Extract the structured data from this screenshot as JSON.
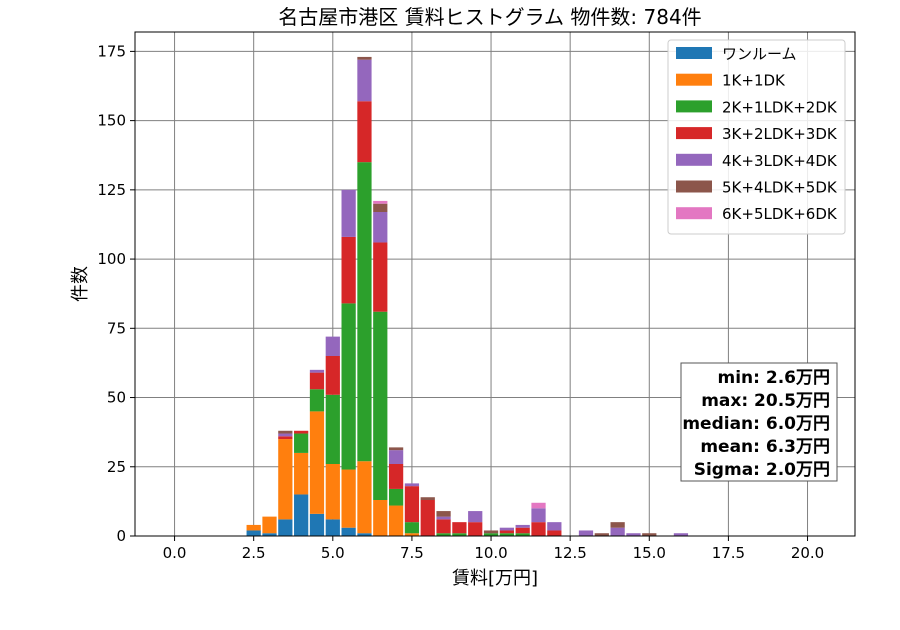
{
  "chart_data": {
    "type": "bar",
    "stacked": true,
    "title": "名古屋市港区 賃料ヒストグラム 物件数: 784件",
    "xlabel": "賃料[万円]",
    "ylabel": "件数",
    "xlim": [
      -1.25,
      21.5
    ],
    "ylim": [
      0,
      182
    ],
    "xticks": [
      "0.0",
      "2.5",
      "5.0",
      "7.5",
      "10.0",
      "12.5",
      "15.0",
      "17.5",
      "20.0"
    ],
    "yticks": [
      "0",
      "25",
      "50",
      "75",
      "100",
      "125",
      "150",
      "175"
    ],
    "grid": true,
    "legend_position": "top-right",
    "bin_width": 0.5,
    "x": [
      2.5,
      3.0,
      3.5,
      4.0,
      4.5,
      5.0,
      5.5,
      6.0,
      6.5,
      7.0,
      7.5,
      8.0,
      8.5,
      9.0,
      9.5,
      10.0,
      10.5,
      11.0,
      11.5,
      12.0,
      12.5,
      13.0,
      13.5,
      14.0,
      14.5,
      15.0,
      15.5,
      16.0
    ],
    "series": [
      {
        "name": "ワンルーム",
        "color": "#1f77b4",
        "values": [
          2,
          1,
          6,
          15,
          8,
          6,
          3,
          1,
          0,
          0,
          0,
          0,
          0,
          0,
          0,
          0,
          0,
          0,
          0,
          0,
          0,
          0,
          0,
          0,
          0,
          0,
          0,
          0
        ]
      },
      {
        "name": "1K+1DK",
        "color": "#ff7f0e",
        "values": [
          2,
          6,
          29,
          15,
          37,
          20,
          21,
          26,
          13,
          11,
          1,
          0,
          0,
          0,
          0,
          0,
          0,
          0,
          0,
          0,
          0,
          0,
          0,
          0,
          0,
          0,
          0,
          0
        ]
      },
      {
        "name": "2K+1LDK+2DK",
        "color": "#2ca02c",
        "values": [
          0,
          0,
          0,
          7,
          8,
          25,
          60,
          108,
          68,
          6,
          4,
          0,
          1,
          1,
          0,
          1,
          1,
          1,
          0,
          0,
          0,
          0,
          0,
          0,
          0,
          0,
          0,
          0
        ]
      },
      {
        "name": "3K+2LDK+3DK",
        "color": "#d62728",
        "values": [
          0,
          0,
          1,
          1,
          6,
          14,
          24,
          22,
          25,
          9,
          13,
          13,
          5,
          4,
          5,
          0,
          1,
          2,
          5,
          2,
          0,
          0,
          0,
          0,
          0,
          0,
          0,
          0
        ]
      },
      {
        "name": "4K+3LDK+4DK",
        "color": "#9467bd",
        "values": [
          0,
          0,
          1,
          0,
          1,
          7,
          17,
          15,
          11,
          5,
          1,
          0,
          1,
          0,
          4,
          0,
          1,
          1,
          5,
          3,
          0,
          2,
          0,
          3,
          1,
          0,
          0,
          1
        ]
      },
      {
        "name": "5K+4LDK+5DK",
        "color": "#8c564b",
        "values": [
          0,
          0,
          1,
          0,
          0,
          0,
          0,
          1,
          3,
          1,
          0,
          1,
          2,
          0,
          0,
          1,
          0,
          0,
          0,
          0,
          0,
          0,
          1,
          2,
          0,
          1,
          0,
          0
        ]
      },
      {
        "name": "6K+5LDK+6DK",
        "color": "#e377c2",
        "values": [
          0,
          0,
          0,
          0,
          0,
          0,
          0,
          0,
          1,
          0,
          0,
          0,
          0,
          0,
          0,
          0,
          0,
          0,
          2,
          0,
          0,
          0,
          0,
          0,
          0,
          0,
          0,
          0
        ]
      }
    ],
    "stats": {
      "min": "min: 2.6万円",
      "max": "max: 20.5万円",
      "median": "median: 6.0万円",
      "mean": "mean: 6.3万円",
      "sigma": "Sigma: 2.0万円"
    }
  }
}
